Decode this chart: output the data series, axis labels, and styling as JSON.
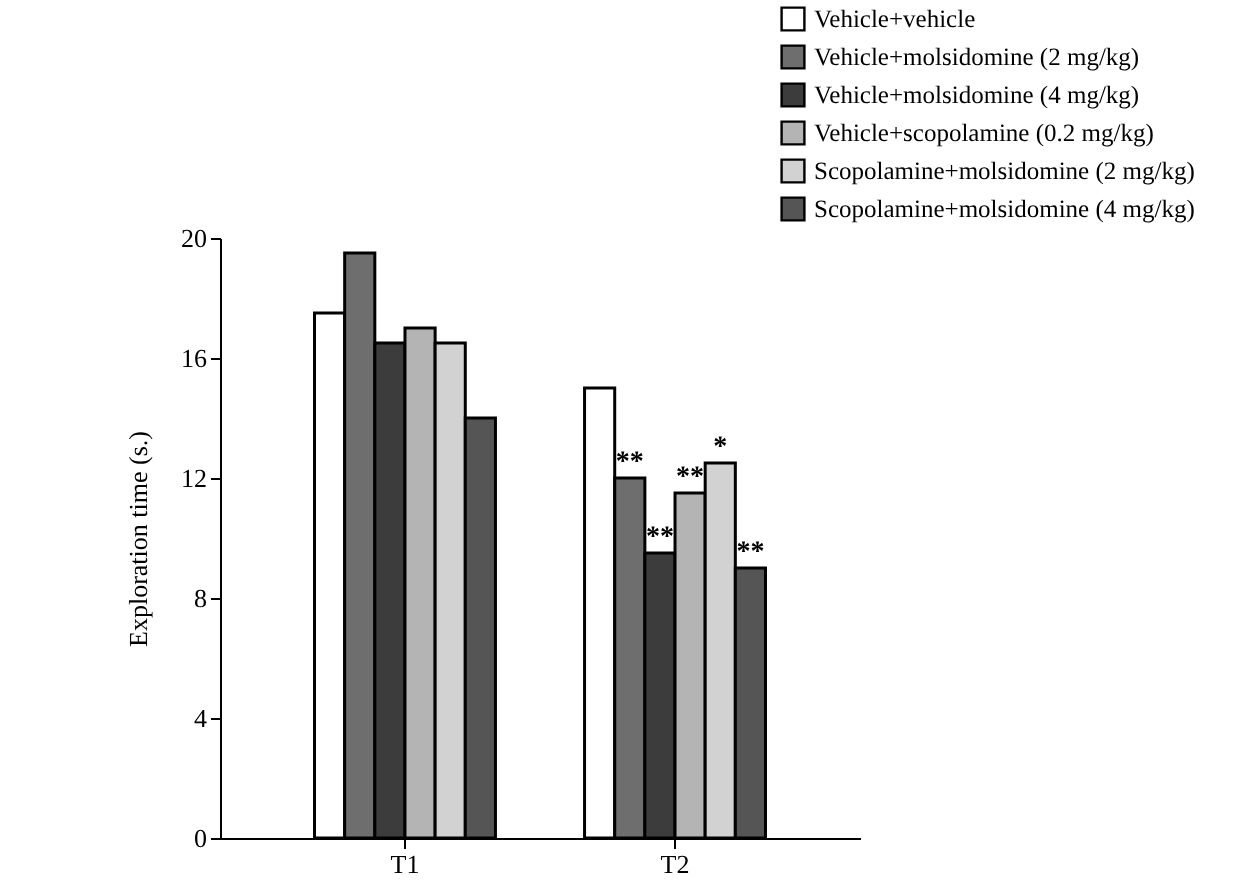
{
  "chart_data": {
    "type": "bar",
    "ylabel": "Exploration time (s.)",
    "categories": [
      "T1",
      "T2"
    ],
    "series": [
      {
        "name": "Vehicle+vehicle",
        "color": "#ffffff",
        "values": [
          17.5,
          15
        ]
      },
      {
        "name": "Vehicle+molsidomine (2 mg/kg)",
        "color": "#6e6e6e",
        "values": [
          19.5,
          12
        ],
        "value_labels": [
          null,
          "**"
        ]
      },
      {
        "name": "Vehicle+molsidomine (4 mg/kg)",
        "color": "#3c3c3c",
        "values": [
          16.5,
          9.5
        ],
        "value_labels": [
          null,
          "**"
        ]
      },
      {
        "name": "Vehicle+scopolamine (0.2 mg/kg)",
        "color": "#b4b4b4",
        "values": [
          17,
          11.5
        ],
        "value_labels": [
          null,
          "**"
        ]
      },
      {
        "name": "Scopolamine+molsidomine (2 mg/kg)",
        "color": "#d2d2d2",
        "values": [
          16.5,
          12.5
        ],
        "value_labels": [
          null,
          "*"
        ]
      },
      {
        "name": "Scopolamine+molsidomine (4 mg/kg)",
        "color": "#555555",
        "values": [
          14,
          9
        ],
        "value_labels": [
          null,
          "**"
        ]
      }
    ],
    "ylim": [
      0,
      20
    ],
    "yticks": [
      0,
      4,
      8,
      12,
      16,
      20
    ],
    "grid": false,
    "legend": "top right"
  }
}
